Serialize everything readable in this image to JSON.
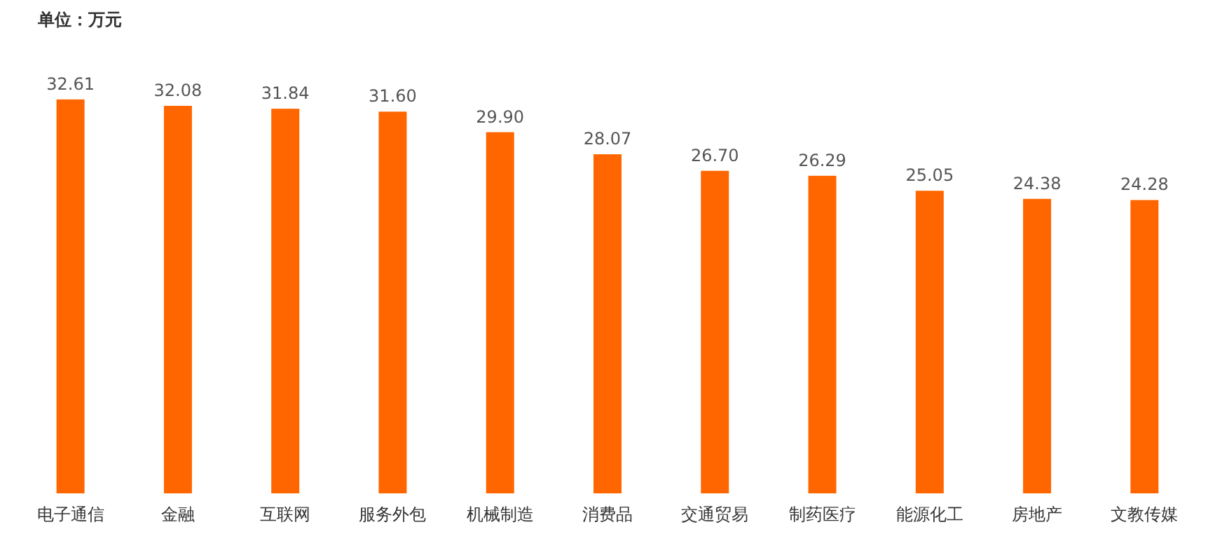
{
  "chart_data": {
    "type": "bar",
    "ylabel": "单位：万元",
    "categories": [
      "电子通信",
      "金融",
      "互联网",
      "服务外包",
      "机械制造",
      "消费品",
      "交通贸易",
      "制药医疗",
      "能源化工",
      "房地产",
      "文教传媒"
    ],
    "values": [
      32.61,
      32.08,
      31.84,
      31.6,
      29.9,
      28.07,
      26.7,
      26.29,
      25.05,
      24.38,
      24.28
    ],
    "value_labels": [
      "32.61",
      "32.08",
      "31.84",
      "31.60",
      "29.90",
      "28.07",
      "26.70",
      "26.29",
      "25.05",
      "24.38",
      "24.28"
    ],
    "color": "#ff6600",
    "tick_labels": "x"
  }
}
